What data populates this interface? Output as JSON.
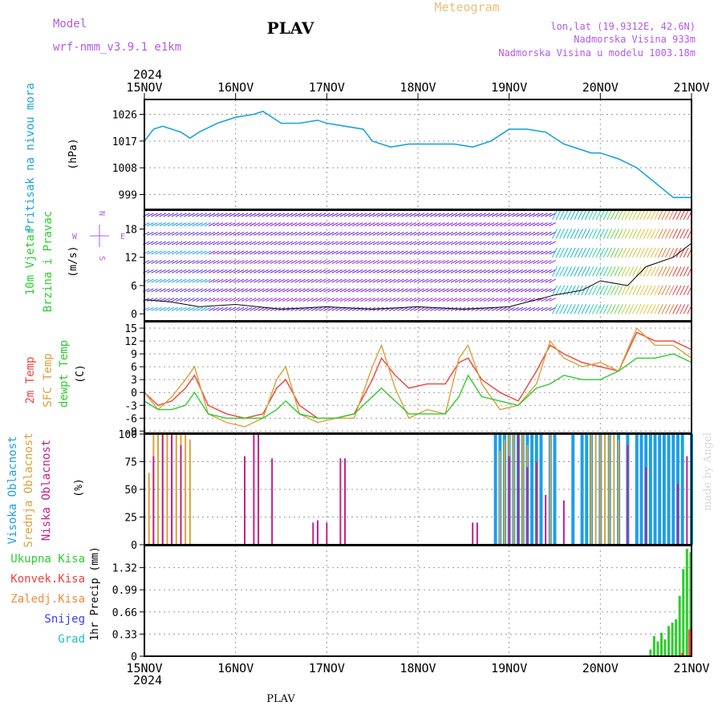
{
  "header": {
    "model_label": "Model",
    "model_value": "wrf-nmm_v3.9.1  e1km",
    "station": "PLAV",
    "title": "Meteogram",
    "lonlat": "lon,lat (19.9312E, 42.6N)",
    "elevation": "Nadmorska Visina 933m",
    "model_elevation": "Nadmorska Visina u modelu 1003.18m",
    "year_top": "2024",
    "year_bottom": "2024",
    "footer_station": "PLAV",
    "credit": "made by Angel"
  },
  "colors": {
    "pressure": "#1ca3df",
    "temp2m": "#f0413c",
    "sfc": "#d8a23a",
    "dewpt": "#2ecc2e",
    "high_cloud": "#1e9ee8",
    "mid_cloud": "#d8a23a",
    "low_cloud": "#c0208a",
    "precip_total": "#2ecc2e",
    "precip_conv": "#f0413c",
    "precip_strat": "#f08a3c",
    "snow": "#3a3aff",
    "hail": "#20c0c0",
    "label_purple": "#b45ae6",
    "grid": "#999999"
  },
  "chart_data": [
    {
      "type": "line",
      "panel": "pressure",
      "ylabel_name": "Pritisak na nivou mora",
      "ylabel_unit": "(hPa)",
      "x_ticks": [
        "15NOV",
        "16NOV",
        "17NOV",
        "18NOV",
        "19NOV",
        "20NOV",
        "21NOV"
      ],
      "y_ticks": [
        999,
        1008,
        1017,
        1026
      ],
      "ylim": [
        994,
        1031
      ],
      "grid": true,
      "x": [
        0,
        0.1,
        0.2,
        0.3,
        0.4,
        0.5,
        0.6,
        0.8,
        1.0,
        1.2,
        1.3,
        1.5,
        1.7,
        1.9,
        2.0,
        2.2,
        2.4,
        2.5,
        2.7,
        2.9,
        3.0,
        3.2,
        3.4,
        3.6,
        3.8,
        4.0,
        4.2,
        4.4,
        4.6,
        4.8,
        4.9,
        5.0,
        5.2,
        5.4,
        5.6,
        5.8,
        6.0
      ],
      "series": [
        {
          "name": "",
          "values": [
            1017,
            1021,
            1022,
            1021,
            1020,
            1018,
            1020,
            1023,
            1025,
            1026,
            1027,
            1023,
            1023,
            1024,
            1023,
            1022,
            1021,
            1017,
            1015,
            1016,
            1016,
            1016,
            1016,
            1015,
            1017,
            1021,
            1021,
            1020,
            1016,
            1014,
            1013,
            1013,
            1011,
            1008,
            1003,
            998,
            998
          ]
        }
      ]
    },
    {
      "type": "line",
      "panel": "wind",
      "ylabel_name": "10m Vjetar",
      "ylabel_name2": "Brzina i Pravac",
      "ylabel_unit": "(m/s)",
      "compass": {
        "n": "N",
        "s": "S",
        "e": "E",
        "w": "W"
      },
      "x_ticks": [
        "15NOV",
        "16NOV",
        "17NOV",
        "18NOV",
        "19NOV",
        "20NOV",
        "21NOV"
      ],
      "y_ticks": [
        0,
        6,
        12,
        18
      ],
      "ylim": [
        -1.5,
        22
      ],
      "x": [
        0,
        0.3,
        0.6,
        1.0,
        1.5,
        2.0,
        2.5,
        3.0,
        3.5,
        4.0,
        4.5,
        4.8,
        5.0,
        5.3,
        5.5,
        5.8,
        6.0
      ],
      "series": [
        {
          "name": "",
          "values": [
            3,
            2.5,
            1.5,
            2,
            1,
            1.5,
            1,
            1.5,
            1,
            1.5,
            4,
            5,
            7,
            6,
            10,
            12,
            15
          ]
        }
      ]
    },
    {
      "type": "line",
      "panel": "temperature",
      "ylabel_names": [
        "2m Temp",
        "SFC Temp",
        "dewpt Temp"
      ],
      "ylabel_unit": "(C)",
      "x_ticks": [
        "15NOV",
        "16NOV",
        "17NOV",
        "18NOV",
        "19NOV",
        "20NOV",
        "21NOV"
      ],
      "y_ticks": [
        -9,
        -6,
        -3,
        0,
        3,
        6,
        9,
        12,
        15
      ],
      "ylim": [
        -9.5,
        16.5
      ],
      "grid": true,
      "x": [
        0,
        0.15,
        0.3,
        0.45,
        0.55,
        0.7,
        0.9,
        1.1,
        1.3,
        1.45,
        1.55,
        1.7,
        1.9,
        2.1,
        2.3,
        2.5,
        2.6,
        2.75,
        2.9,
        3.1,
        3.3,
        3.45,
        3.55,
        3.7,
        3.9,
        4.1,
        4.3,
        4.45,
        4.6,
        4.8,
        5.0,
        5.2,
        5.4,
        5.6,
        5.8,
        6.0
      ],
      "series": [
        {
          "name": "2m Temp",
          "values": [
            0,
            -3,
            -2,
            1,
            4,
            -3,
            -5,
            -6,
            -5,
            1,
            3,
            -3,
            -6,
            -6,
            -5,
            3,
            8,
            4,
            1,
            2,
            2,
            7,
            8,
            3,
            0,
            -2,
            5,
            11,
            9,
            7,
            6,
            5,
            14,
            12,
            12,
            10
          ]
        },
        {
          "name": "SFC Temp",
          "values": [
            0,
            -4,
            -1,
            3,
            6,
            -5,
            -7,
            -8,
            -6,
            3,
            6,
            -5,
            -7,
            -6,
            -6,
            6,
            11,
            1,
            -6,
            -4,
            -5,
            8,
            11,
            2,
            -4,
            -3,
            2,
            12,
            8,
            6,
            7,
            5,
            15,
            11,
            11,
            8
          ]
        },
        {
          "name": "dewpt Temp",
          "values": [
            -2,
            -4,
            -4,
            -3,
            0,
            -5,
            -6,
            -6,
            -6,
            -4,
            -2,
            -5,
            -6,
            -6,
            -5,
            -1,
            1,
            -2,
            -5,
            -5,
            -5,
            -1,
            4,
            -1,
            -2,
            -3,
            1,
            2,
            4,
            3,
            3,
            5,
            8,
            8,
            9,
            7
          ]
        }
      ]
    },
    {
      "type": "bar",
      "panel": "clouds",
      "ylabel_names": [
        "Visoka Oblacnost",
        "Srednja Oblacnost",
        "Niska Oblacnost"
      ],
      "ylabel_unit": "(%)",
      "x_ticks": [
        "15NOV",
        "16NOV",
        "17NOV",
        "18NOV",
        "19NOV",
        "20NOV",
        "21NOV"
      ],
      "y_ticks": [
        0,
        25,
        50,
        75,
        100
      ],
      "ylim": [
        0,
        100
      ],
      "grid": true,
      "series": [
        {
          "name": "Visoka Oblacnost",
          "x": [
            3.85,
            3.9,
            3.95,
            4.0,
            4.05,
            4.1,
            4.15,
            4.2,
            4.25,
            4.3,
            4.35,
            4.45,
            4.5,
            4.7,
            4.8,
            4.85,
            4.9,
            5.0,
            5.1,
            5.2,
            5.3,
            5.4,
            5.45,
            5.5,
            5.55,
            5.6,
            5.65,
            5.7,
            5.75,
            5.8,
            5.85,
            5.9,
            6.0
          ],
          "values": [
            100,
            100,
            100,
            100,
            100,
            100,
            100,
            100,
            100,
            100,
            100,
            100,
            100,
            100,
            100,
            100,
            100,
            100,
            100,
            100,
            100,
            100,
            100,
            100,
            100,
            100,
            100,
            100,
            100,
            100,
            100,
            100,
            100
          ]
        },
        {
          "name": "Srednja Oblacnost",
          "x": [
            0.05,
            0.1,
            0.15,
            0.2,
            0.25,
            0.3,
            0.35,
            0.4,
            0.45,
            0.5,
            3.9,
            3.95,
            4.0,
            4.05,
            4.1,
            4.15,
            4.2,
            4.3,
            4.45,
            4.9,
            4.95,
            5.0,
            5.05,
            5.1,
            5.15,
            5.2
          ],
          "values": [
            65,
            100,
            100,
            100,
            100,
            100,
            100,
            100,
            100,
            95,
            85,
            95,
            100,
            100,
            100,
            100,
            90,
            75,
            100,
            100,
            100,
            100,
            100,
            100,
            100,
            95
          ]
        },
        {
          "name": "Niska Oblacnost",
          "x": [
            0.1,
            0.2,
            0.3,
            0.4,
            1.1,
            1.2,
            1.25,
            1.4,
            1.85,
            1.9,
            2.0,
            2.15,
            2.2,
            3.6,
            3.65,
            4.0,
            4.1,
            4.2,
            4.3,
            4.4,
            4.6,
            5.3,
            5.5,
            5.85,
            5.95
          ],
          "values": [
            80,
            100,
            100,
            90,
            80,
            100,
            100,
            78,
            20,
            22,
            20,
            78,
            78,
            20,
            20,
            80,
            100,
            70,
            75,
            45,
            40,
            90,
            70,
            55,
            80
          ]
        }
      ]
    },
    {
      "type": "bar",
      "panel": "precipitation",
      "ylabel_names": [
        "Ukupna Kisa",
        "Konvek.Kisa",
        "Zaledj.Kisa",
        "Snijeg",
        "Grad"
      ],
      "ylabel_unit": "1hr Precip (mm)",
      "x_ticks": [
        "15NOV",
        "16NOV",
        "17NOV",
        "18NOV",
        "19NOV",
        "20NOV",
        "21NOV"
      ],
      "y_ticks": [
        0,
        0.33,
        0.66,
        0.99,
        1.32
      ],
      "ylim": [
        0,
        1.65
      ],
      "grid": true,
      "series": [
        {
          "name": "Ukupna Kisa",
          "x": [
            5.55,
            5.59,
            5.63,
            5.67,
            5.71,
            5.75,
            5.79,
            5.83,
            5.87,
            5.91,
            5.95,
            5.99
          ],
          "values": [
            0.1,
            0.3,
            0.22,
            0.35,
            0.25,
            0.45,
            0.5,
            0.55,
            0.9,
            1.3,
            1.6,
            1.55
          ]
        },
        {
          "name": "Konvek.Kisa",
          "x": [
            5.9,
            5.98
          ],
          "values": [
            0.05,
            0.4
          ]
        }
      ]
    }
  ]
}
